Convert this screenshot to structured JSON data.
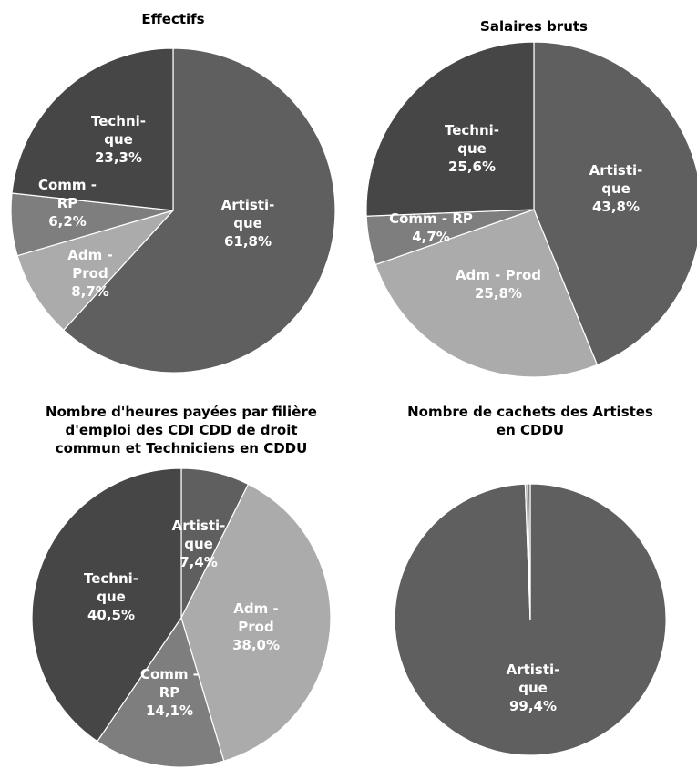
{
  "chart_data": [
    {
      "type": "pie",
      "title": "Effectifs",
      "slices": [
        {
          "label": [
            "Artisti-",
            "que",
            "61,8%"
          ],
          "value": 61.8,
          "color": "#5f5f5f"
        },
        {
          "label": [
            "Adm -",
            "Prod",
            "8,7%"
          ],
          "value": 8.7,
          "color": "#ababab"
        },
        {
          "label": [
            "Comm -",
            "RP",
            "6,2%"
          ],
          "value": 6.2,
          "color": "#7e7e7e"
        },
        {
          "label": [
            "Techni-",
            "que",
            "23,3%"
          ],
          "value": 23.3,
          "color": "#464646"
        }
      ]
    },
    {
      "type": "pie",
      "title": "Salaires bruts",
      "slices": [
        {
          "label": [
            "Artisti-",
            "que",
            "43,8%"
          ],
          "value": 43.8,
          "color": "#5f5f5f"
        },
        {
          "label": [
            "Adm - Prod",
            "25,8%"
          ],
          "value": 25.8,
          "color": "#ababab"
        },
        {
          "label": [
            "Comm - RP",
            "4,7%"
          ],
          "value": 4.7,
          "color": "#7e7e7e"
        },
        {
          "label": [
            "Techni-",
            "que",
            "25,6%"
          ],
          "value": 25.6,
          "color": "#464646"
        }
      ]
    },
    {
      "type": "pie",
      "title": [
        "Nombre d'heures payées par filière",
        "d'emploi des CDI CDD de droit",
        "commun et Techniciens en CDDU"
      ],
      "slices": [
        {
          "label": [
            "Artisti-",
            "que",
            "7,4%"
          ],
          "value": 7.4,
          "color": "#5f5f5f"
        },
        {
          "label": [
            "Adm -",
            "Prod",
            "38,0%"
          ],
          "value": 38.0,
          "color": "#ababab"
        },
        {
          "label": [
            "Comm -",
            "RP",
            "14,1%"
          ],
          "value": 14.1,
          "color": "#7e7e7e"
        },
        {
          "label": [
            "Techni-",
            "que",
            "40,5%"
          ],
          "value": 40.5,
          "color": "#464646"
        }
      ]
    },
    {
      "type": "pie",
      "title": [
        "Nombre de cachets des Artistes",
        "en CDDU"
      ],
      "slices": [
        {
          "label": [
            "Artisti-",
            "que",
            "99,4%"
          ],
          "value": 99.4,
          "color": "#5f5f5f"
        },
        {
          "label": [],
          "value": 0.3,
          "color": "#ababab"
        },
        {
          "label": [],
          "value": 0.3,
          "color": "#7e7e7e"
        }
      ]
    }
  ]
}
